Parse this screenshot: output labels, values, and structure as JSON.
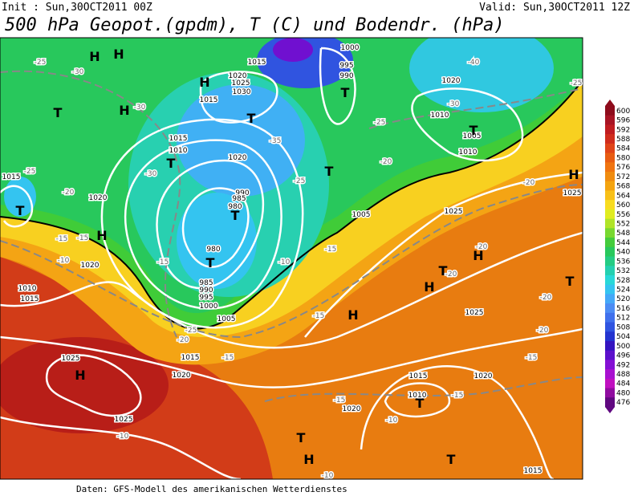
{
  "header": {
    "init": "Init : Sun,30OCT2011 00Z",
    "valid": "Valid: Sun,30OCT2011 12Z",
    "title": "500 hPa Geopot.(gpdm), T (C) und Bodendr. (hPa)"
  },
  "colorbar": {
    "ticks": [
      600,
      596,
      592,
      588,
      584,
      580,
      576,
      572,
      568,
      564,
      560,
      556,
      552,
      548,
      544,
      540,
      536,
      532,
      528,
      524,
      520,
      516,
      512,
      508,
      504,
      500,
      496,
      492,
      488,
      484,
      480,
      476
    ],
    "colors": [
      "#8e0c1c",
      "#a81424",
      "#c01c20",
      "#d02c1c",
      "#e04418",
      "#e85c12",
      "#f07410",
      "#f08c10",
      "#f4a410",
      "#f8c018",
      "#f8dc20",
      "#e0ec20",
      "#b0e428",
      "#78d830",
      "#44cc3c",
      "#28c85c",
      "#24cc84",
      "#24d0b0",
      "#28d8d8",
      "#34c4f0",
      "#44a8f8",
      "#4c8cf4",
      "#4070ec",
      "#3054e0",
      "#2434d0",
      "#3414c0",
      "#5c10cc",
      "#8410d4",
      "#a810d0",
      "#c010c0",
      "#900ca0",
      "#600880"
    ]
  },
  "map": {
    "pressure_centers": [
      "H",
      "H",
      "T",
      "H",
      "H",
      "T",
      "T",
      "T",
      "H",
      "T",
      "H",
      "T",
      "T",
      "T",
      "T",
      "H",
      "T",
      "H",
      "H",
      "H",
      "T",
      "T",
      "H",
      "T",
      "T"
    ],
    "isobars": [
      "1015",
      "1020",
      "1025",
      "1030",
      "1015",
      "1000",
      "995",
      "990",
      "1020",
      "1010",
      "1005",
      "1010",
      "1015",
      "1010",
      "1020",
      "990",
      "985",
      "980",
      "1015",
      "1020",
      "980",
      "985",
      "990",
      "995",
      "1000",
      "1005",
      "1010",
      "1015",
      "1020",
      "1025",
      "1005",
      "1025",
      "1015",
      "1020",
      "1025",
      "1025",
      "1020",
      "1015",
      "1010",
      "1020",
      "1015",
      "1025"
    ],
    "temperatures": [
      "-25",
      "-30",
      "-30",
      "-40",
      "-25",
      "-30",
      "-25",
      "-20",
      "-25",
      "-35",
      "-30",
      "-25",
      "-20",
      "-15",
      "-15",
      "-10",
      "-15",
      "-25",
      "-20",
      "-15",
      "-15",
      "-10",
      "-20",
      "-20",
      "-20",
      "-20",
      "-20",
      "-15",
      "-15",
      "-15",
      "-10",
      "-10",
      "-10",
      "-15"
    ]
  },
  "footer": "Daten: GFS-Modell des amerikanischen Wetterdienstes"
}
